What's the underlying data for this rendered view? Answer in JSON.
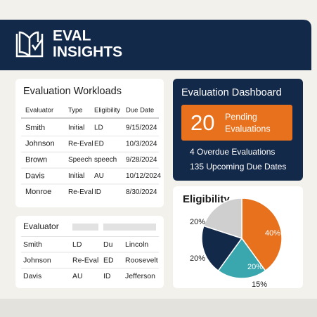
{
  "header": {
    "title_lines": [
      "EVAL",
      "INSIGHTS"
    ]
  },
  "workloads": {
    "title": "Evaluation Workloads",
    "columns": [
      "Evaluator",
      "Type",
      "Eligibility",
      "Due Date"
    ],
    "rows": [
      [
        "Smith",
        "Initial",
        "LD",
        "9/15/2024"
      ],
      [
        "Johnson",
        "Re-Eval",
        "ED",
        "10/3/2024"
      ],
      [
        "Brown",
        "Speech",
        "speech",
        "9/28/2024"
      ],
      [
        "Davis",
        "Initial",
        "AU",
        "10/12/2024"
      ],
      [
        "Monroe",
        "Re-Eval",
        "ID",
        "8/30/2024"
      ]
    ]
  },
  "dashboard": {
    "title": "Evaluation Dashboard",
    "pending_count": 20,
    "pending_label": [
      "Pending",
      "Evaluations"
    ],
    "lines": [
      "4 Overdue Evaluations",
      "135 Upcoming Due Dates"
    ]
  },
  "evaluators": {
    "title": "Evaluator",
    "rows": [
      [
        "Smith",
        "LD",
        "Du",
        "Lincoln"
      ],
      [
        "Johnson",
        "Re-Eval",
        "ED",
        "Roosevelt"
      ],
      [
        "Davis",
        "AU",
        "ID",
        "Jefferson"
      ]
    ]
  },
  "eligibility": {
    "type": "pie",
    "title": "Eligibility",
    "values": [
      40,
      20,
      20,
      20
    ],
    "value_labels": [
      "40%",
      "20%",
      "20%",
      "20%"
    ],
    "colors": [
      "#e8711e",
      "#3aa6ad",
      "#13294a",
      "#cfcfcf"
    ],
    "note": "15%"
  }
}
